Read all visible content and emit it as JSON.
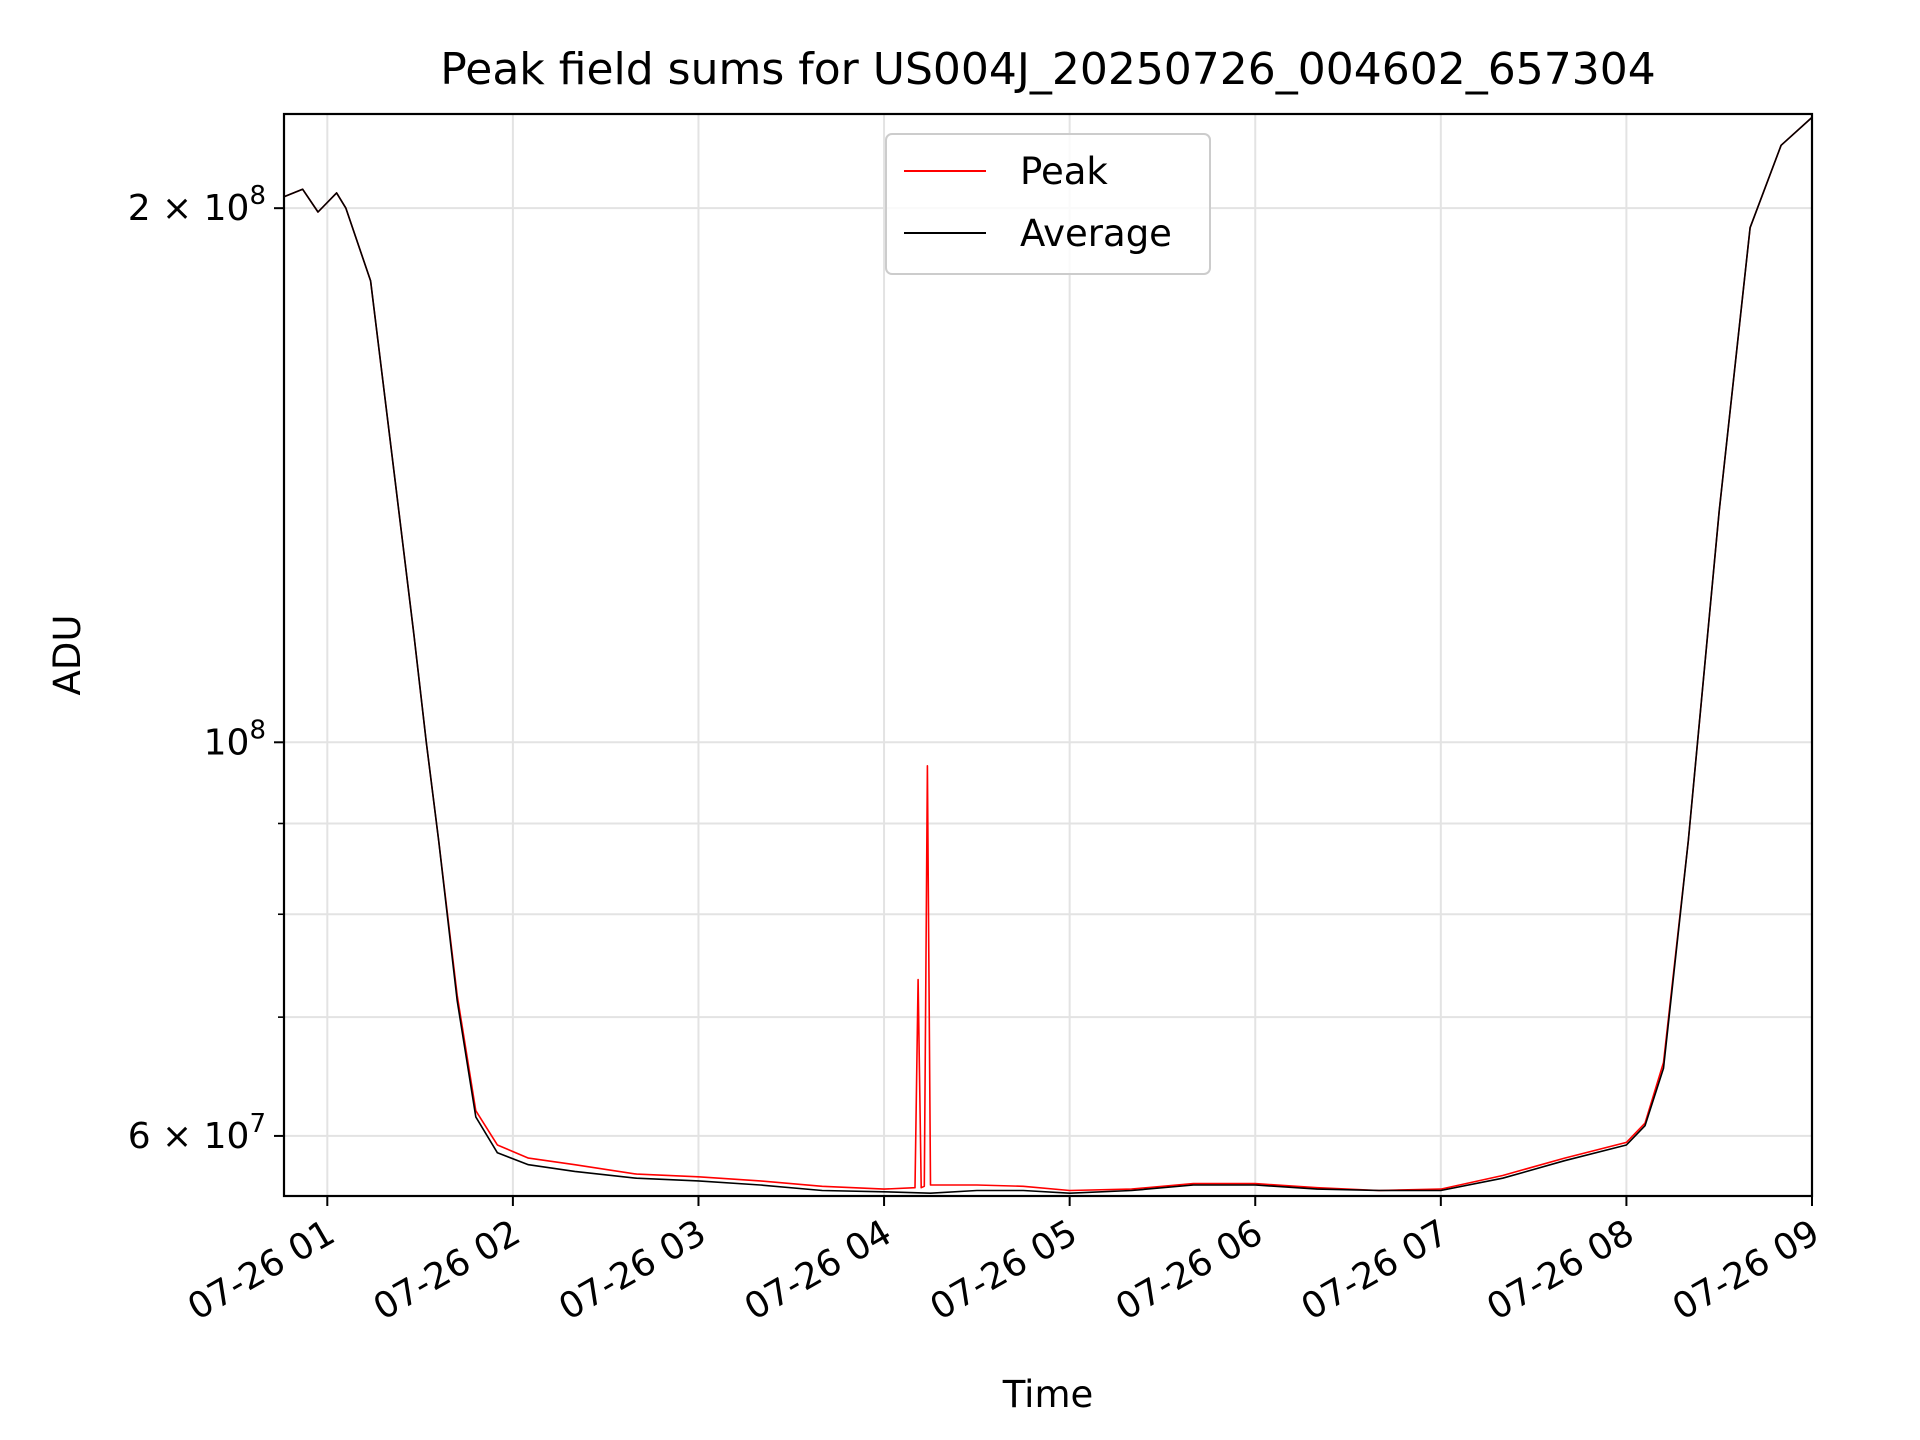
{
  "chart_data": {
    "type": "line",
    "title": "Peak field sums for US004J_20250726_004602_657304",
    "xlabel": "Time",
    "ylabel": "ADU",
    "yscale": "log",
    "xlim": [
      "2025-07-26T00:46",
      "2025-07-26T09:00"
    ],
    "ylim": [
      55500000,
      226000000
    ],
    "x_ticks": [
      {
        "t": "2025-07-26T01:00",
        "label": "07-26 01"
      },
      {
        "t": "2025-07-26T02:00",
        "label": "07-26 02"
      },
      {
        "t": "2025-07-26T03:00",
        "label": "07-26 03"
      },
      {
        "t": "2025-07-26T04:00",
        "label": "07-26 04"
      },
      {
        "t": "2025-07-26T05:00",
        "label": "07-26 05"
      },
      {
        "t": "2025-07-26T06:00",
        "label": "07-26 06"
      },
      {
        "t": "2025-07-26T07:00",
        "label": "07-26 07"
      },
      {
        "t": "2025-07-26T08:00",
        "label": "07-26 08"
      },
      {
        "t": "2025-07-26T09:00",
        "label": "07-26 09"
      }
    ],
    "y_major_ticks": [
      {
        "v": 60000000,
        "mantissa": "6",
        "exp": "7"
      },
      {
        "v": 100000000,
        "mantissa": "",
        "exp": "8"
      },
      {
        "v": 200000000,
        "mantissa": "2",
        "exp": "8"
      }
    ],
    "y_minor_ticks": [
      70000000,
      80000000,
      90000000
    ],
    "grid": true,
    "legend_position": "upper center",
    "series": [
      {
        "name": "Peak",
        "color": "#ff0000",
        "points": [
          [
            "2025-07-26T00:46",
            203000000
          ],
          [
            "2025-07-26T00:52",
            205000000
          ],
          [
            "2025-07-26T00:57",
            199000000
          ],
          [
            "2025-07-26T01:03",
            204000000
          ],
          [
            "2025-07-26T01:06",
            200000000
          ],
          [
            "2025-07-26T01:14",
            182000000
          ],
          [
            "2025-07-26T01:22",
            140000000
          ],
          [
            "2025-07-26T01:28",
            115000000
          ],
          [
            "2025-07-26T01:32",
            100000000
          ],
          [
            "2025-07-26T01:36",
            88000000
          ],
          [
            "2025-07-26T01:42",
            72000000
          ],
          [
            "2025-07-26T01:48",
            62000000
          ],
          [
            "2025-07-26T01:55",
            59300000
          ],
          [
            "2025-07-26T02:05",
            58300000
          ],
          [
            "2025-07-26T02:20",
            57800000
          ],
          [
            "2025-07-26T02:40",
            57100000
          ],
          [
            "2025-07-26T03:00",
            56900000
          ],
          [
            "2025-07-26T03:20",
            56600000
          ],
          [
            "2025-07-26T03:40",
            56200000
          ],
          [
            "2025-07-26T04:00",
            56000000
          ],
          [
            "2025-07-26T04:10",
            56100000
          ],
          [
            "2025-07-26T04:11",
            73500000
          ],
          [
            "2025-07-26T04:12",
            56100000
          ],
          [
            "2025-07-26T04:13",
            56200000
          ],
          [
            "2025-07-26T04:14",
            97000000
          ],
          [
            "2025-07-26T04:15",
            56300000
          ],
          [
            "2025-07-26T04:30",
            56300000
          ],
          [
            "2025-07-26T04:45",
            56200000
          ],
          [
            "2025-07-26T05:00",
            55900000
          ],
          [
            "2025-07-26T05:20",
            56000000
          ],
          [
            "2025-07-26T05:40",
            56400000
          ],
          [
            "2025-07-26T06:00",
            56400000
          ],
          [
            "2025-07-26T06:20",
            56100000
          ],
          [
            "2025-07-26T06:40",
            55900000
          ],
          [
            "2025-07-26T07:00",
            56000000
          ],
          [
            "2025-07-26T07:20",
            57000000
          ],
          [
            "2025-07-26T07:40",
            58300000
          ],
          [
            "2025-07-26T08:00",
            59500000
          ],
          [
            "2025-07-26T08:06",
            61000000
          ],
          [
            "2025-07-26T08:12",
            66000000
          ],
          [
            "2025-07-26T08:20",
            88000000
          ],
          [
            "2025-07-26T08:30",
            135000000
          ],
          [
            "2025-07-26T08:40",
            195000000
          ],
          [
            "2025-07-26T08:50",
            217000000
          ],
          [
            "2025-07-26T09:00",
            225000000
          ]
        ]
      },
      {
        "name": "Average",
        "color": "#000000",
        "points": [
          [
            "2025-07-26T00:46",
            203000000
          ],
          [
            "2025-07-26T00:52",
            205000000
          ],
          [
            "2025-07-26T00:57",
            199000000
          ],
          [
            "2025-07-26T01:03",
            204000000
          ],
          [
            "2025-07-26T01:06",
            200000000
          ],
          [
            "2025-07-26T01:14",
            182000000
          ],
          [
            "2025-07-26T01:22",
            140000000
          ],
          [
            "2025-07-26T01:28",
            115000000
          ],
          [
            "2025-07-26T01:32",
            100000000
          ],
          [
            "2025-07-26T01:36",
            88000000
          ],
          [
            "2025-07-26T01:42",
            71500000
          ],
          [
            "2025-07-26T01:48",
            61500000
          ],
          [
            "2025-07-26T01:55",
            58700000
          ],
          [
            "2025-07-26T02:05",
            57800000
          ],
          [
            "2025-07-26T02:20",
            57300000
          ],
          [
            "2025-07-26T02:40",
            56800000
          ],
          [
            "2025-07-26T03:00",
            56600000
          ],
          [
            "2025-07-26T03:20",
            56300000
          ],
          [
            "2025-07-26T03:40",
            55900000
          ],
          [
            "2025-07-26T04:00",
            55800000
          ],
          [
            "2025-07-26T04:15",
            55700000
          ],
          [
            "2025-07-26T04:30",
            55900000
          ],
          [
            "2025-07-26T04:45",
            55900000
          ],
          [
            "2025-07-26T05:00",
            55700000
          ],
          [
            "2025-07-26T05:20",
            55900000
          ],
          [
            "2025-07-26T05:40",
            56300000
          ],
          [
            "2025-07-26T06:00",
            56300000
          ],
          [
            "2025-07-26T06:20",
            56000000
          ],
          [
            "2025-07-26T06:40",
            55900000
          ],
          [
            "2025-07-26T07:00",
            55900000
          ],
          [
            "2025-07-26T07:20",
            56800000
          ],
          [
            "2025-07-26T07:40",
            58100000
          ],
          [
            "2025-07-26T08:00",
            59300000
          ],
          [
            "2025-07-26T08:06",
            60800000
          ],
          [
            "2025-07-26T08:12",
            65500000
          ],
          [
            "2025-07-26T08:20",
            88000000
          ],
          [
            "2025-07-26T08:30",
            135000000
          ],
          [
            "2025-07-26T08:40",
            195000000
          ],
          [
            "2025-07-26T08:50",
            217000000
          ],
          [
            "2025-07-26T09:00",
            225000000
          ]
        ]
      }
    ]
  }
}
